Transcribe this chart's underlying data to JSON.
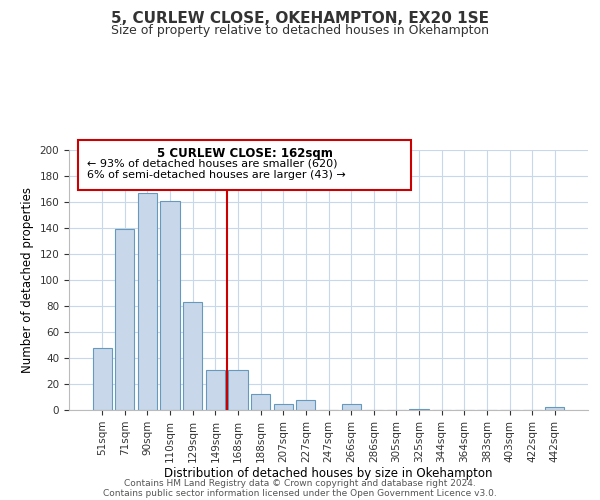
{
  "title": "5, CURLEW CLOSE, OKEHAMPTON, EX20 1SE",
  "subtitle": "Size of property relative to detached houses in Okehampton",
  "xlabel": "Distribution of detached houses by size in Okehampton",
  "ylabel": "Number of detached properties",
  "bar_labels": [
    "51sqm",
    "71sqm",
    "90sqm",
    "110sqm",
    "129sqm",
    "149sqm",
    "168sqm",
    "188sqm",
    "207sqm",
    "227sqm",
    "247sqm",
    "266sqm",
    "286sqm",
    "305sqm",
    "325sqm",
    "344sqm",
    "364sqm",
    "383sqm",
    "403sqm",
    "422sqm",
    "442sqm"
  ],
  "bar_values": [
    48,
    139,
    167,
    161,
    83,
    31,
    31,
    12,
    5,
    8,
    0,
    5,
    0,
    0,
    1,
    0,
    0,
    0,
    0,
    0,
    2
  ],
  "bar_color": "#c8d8ea",
  "bar_edge_color": "#6699bb",
  "vline_color": "#cc0000",
  "vline_pos": 5.5,
  "ylim": [
    0,
    200
  ],
  "yticks": [
    0,
    20,
    40,
    60,
    80,
    100,
    120,
    140,
    160,
    180,
    200
  ],
  "annotation_title": "5 CURLEW CLOSE: 162sqm",
  "annotation_line1": "← 93% of detached houses are smaller (620)",
  "annotation_line2": "6% of semi-detached houses are larger (43) →",
  "footer_line1": "Contains HM Land Registry data © Crown copyright and database right 2024.",
  "footer_line2": "Contains public sector information licensed under the Open Government Licence v3.0.",
  "background_color": "#ffffff",
  "grid_color": "#c8d8ea"
}
